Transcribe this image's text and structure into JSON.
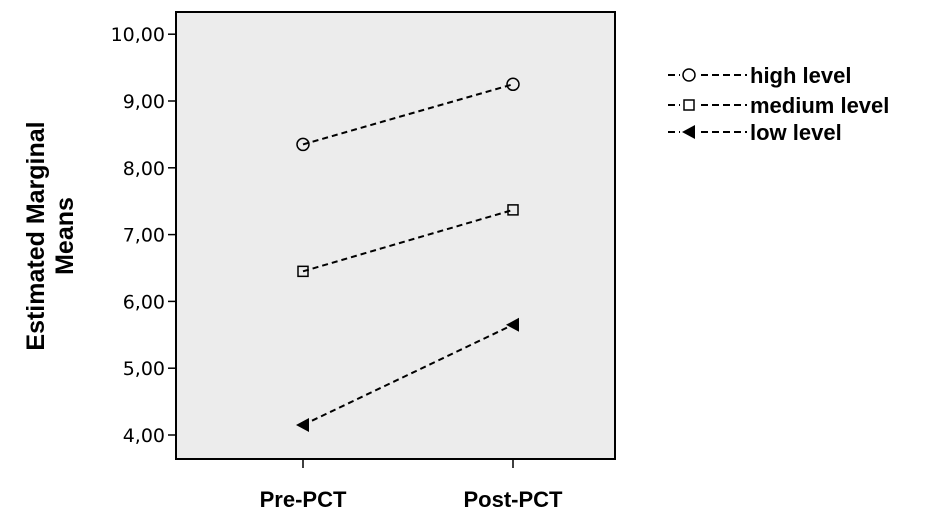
{
  "chart_data": {
    "type": "line",
    "categories": [
      "Pre-PCT",
      "Post-PCT"
    ],
    "ylabel_lines": [
      "Estimated Marginal",
      "Means"
    ],
    "yticks": [
      "4,00",
      "5,00",
      "6,00",
      "7,00",
      "8,00",
      "9,00",
      "10,00"
    ],
    "ylim": [
      3.75,
      10.35
    ],
    "grid": false,
    "legend_position": "right",
    "plot_background": "#ececec",
    "series": [
      {
        "name": "high level",
        "marker": "circle",
        "values": [
          8.35,
          9.25
        ]
      },
      {
        "name": "medium level",
        "marker": "square",
        "values": [
          6.45,
          7.37
        ]
      },
      {
        "name": "low level",
        "marker": "triangle-left",
        "values": [
          4.15,
          5.65
        ]
      }
    ]
  }
}
